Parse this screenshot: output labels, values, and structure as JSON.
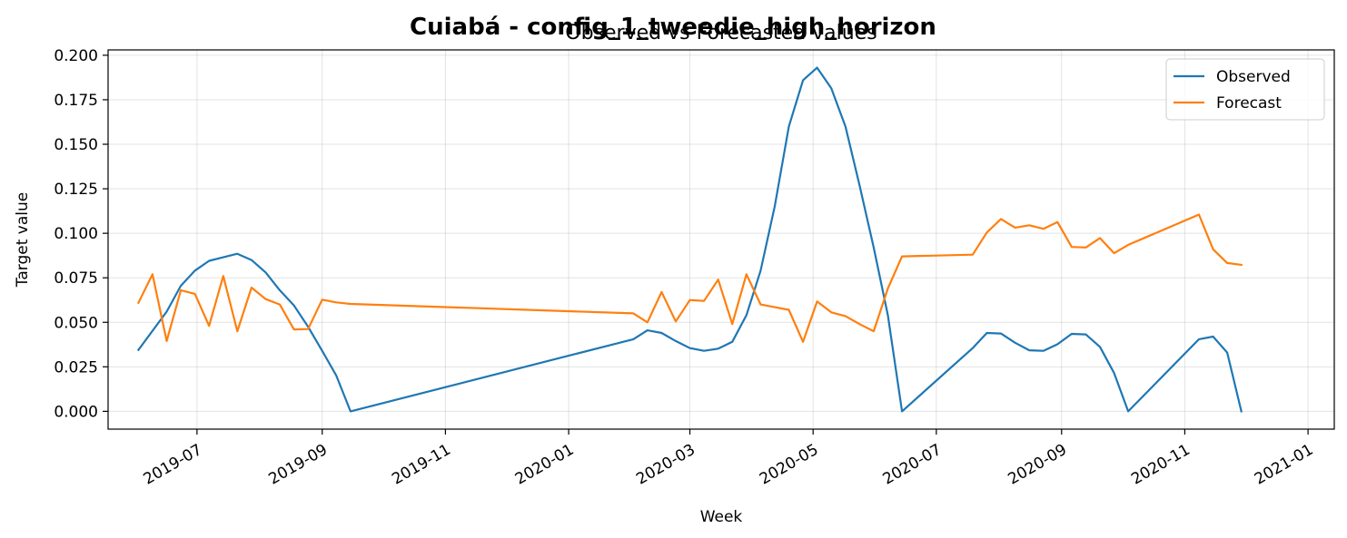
{
  "chart_data": {
    "type": "line",
    "title": "Cuiabá - config_1_tweedie_high_horizon",
    "subtitle": "Observed vs Forecasted values",
    "xlabel": "Week",
    "ylabel": "Target value",
    "xlim": [
      "2019-05-18",
      "2021-01-14"
    ],
    "ylim": [
      -0.01,
      0.203
    ],
    "grid": true,
    "legend": "top-right",
    "x_ticks": [
      "2019-07-01",
      "2019-09-01",
      "2019-11-01",
      "2020-01-01",
      "2020-03-01",
      "2020-05-01",
      "2020-07-01",
      "2020-09-01",
      "2020-11-01",
      "2021-01-01"
    ],
    "x_tick_labels": [
      "2019-07",
      "2019-09",
      "2019-11",
      "2020-01",
      "2020-03",
      "2020-05",
      "2020-07",
      "2020-09",
      "2020-11",
      "2021-01"
    ],
    "y_ticks": [
      0.0,
      0.025,
      0.05,
      0.075,
      0.1,
      0.125,
      0.15,
      0.175,
      0.2
    ],
    "y_tick_labels": [
      "0.000",
      "0.025",
      "0.050",
      "0.075",
      "0.100",
      "0.125",
      "0.150",
      "0.175",
      "0.200"
    ],
    "series": [
      {
        "name": "Observed",
        "color": "#1f77b4",
        "points": [
          [
            "2019-06-02",
            0.0345
          ],
          [
            "2019-06-16",
            0.056
          ],
          [
            "2019-06-23",
            0.0705
          ],
          [
            "2019-06-30",
            0.079
          ],
          [
            "2019-07-07",
            0.0845
          ],
          [
            "2019-07-14",
            0.0865
          ],
          [
            "2019-07-21",
            0.0885
          ],
          [
            "2019-07-28",
            0.085
          ],
          [
            "2019-08-04",
            0.078
          ],
          [
            "2019-08-11",
            0.068
          ],
          [
            "2019-08-18",
            0.0595
          ],
          [
            "2019-08-25",
            0.0475
          ],
          [
            "2019-09-01",
            0.034
          ],
          [
            "2019-09-08",
            0.02
          ],
          [
            "2019-09-15",
            0.0
          ],
          [
            "2020-02-02",
            0.0405
          ],
          [
            "2020-02-09",
            0.0455
          ],
          [
            "2020-02-16",
            0.044
          ],
          [
            "2020-02-23",
            0.0395
          ],
          [
            "2020-03-01",
            0.0355
          ],
          [
            "2020-03-08",
            0.034
          ],
          [
            "2020-03-15",
            0.0352
          ],
          [
            "2020-03-22",
            0.039
          ],
          [
            "2020-03-29",
            0.054
          ],
          [
            "2020-04-05",
            0.079
          ],
          [
            "2020-04-12",
            0.115
          ],
          [
            "2020-04-19",
            0.16
          ],
          [
            "2020-04-26",
            0.186
          ],
          [
            "2020-05-03",
            0.193
          ],
          [
            "2020-05-10",
            0.1815
          ],
          [
            "2020-05-17",
            0.16
          ],
          [
            "2020-05-24",
            0.127
          ],
          [
            "2020-05-31",
            0.092
          ],
          [
            "2020-06-07",
            0.054
          ],
          [
            "2020-06-14",
            0.0
          ],
          [
            "2020-07-19",
            0.0355
          ],
          [
            "2020-07-26",
            0.044
          ],
          [
            "2020-08-02",
            0.0437
          ],
          [
            "2020-08-09",
            0.0385
          ],
          [
            "2020-08-16",
            0.0343
          ],
          [
            "2020-08-23",
            0.034
          ],
          [
            "2020-08-30",
            0.0377
          ],
          [
            "2020-09-06",
            0.0435
          ],
          [
            "2020-09-13",
            0.0432
          ],
          [
            "2020-09-20",
            0.0362
          ],
          [
            "2020-09-27",
            0.0215
          ],
          [
            "2020-10-04",
            0.0
          ],
          [
            "2020-11-08",
            0.0405
          ],
          [
            "2020-11-15",
            0.042
          ],
          [
            "2020-11-22",
            0.033
          ],
          [
            "2020-11-29",
            0.0
          ]
        ]
      },
      {
        "name": "Forecast",
        "color": "#ff7f0e",
        "points": [
          [
            "2019-06-02",
            0.061
          ],
          [
            "2019-06-09",
            0.077
          ],
          [
            "2019-06-16",
            0.0395
          ],
          [
            "2019-06-23",
            0.068
          ],
          [
            "2019-06-30",
            0.066
          ],
          [
            "2019-07-07",
            0.048
          ],
          [
            "2019-07-14",
            0.076
          ],
          [
            "2019-07-21",
            0.045
          ],
          [
            "2019-07-28",
            0.0695
          ],
          [
            "2019-08-04",
            0.063
          ],
          [
            "2019-08-11",
            0.06
          ],
          [
            "2019-08-18",
            0.046
          ],
          [
            "2019-08-25",
            0.0462
          ],
          [
            "2019-09-01",
            0.0627
          ],
          [
            "2019-09-08",
            0.0612
          ],
          [
            "2019-09-15",
            0.0603
          ],
          [
            "2020-02-02",
            0.055
          ],
          [
            "2020-02-09",
            0.05
          ],
          [
            "2020-02-16",
            0.067
          ],
          [
            "2020-02-23",
            0.0505
          ],
          [
            "2020-03-01",
            0.0625
          ],
          [
            "2020-03-08",
            0.062
          ],
          [
            "2020-03-15",
            0.074
          ],
          [
            "2020-03-22",
            0.049
          ],
          [
            "2020-03-29",
            0.077
          ],
          [
            "2020-04-05",
            0.06
          ],
          [
            "2020-04-12",
            0.0585
          ],
          [
            "2020-04-19",
            0.057
          ],
          [
            "2020-04-26",
            0.039
          ],
          [
            "2020-05-03",
            0.0617
          ],
          [
            "2020-05-10",
            0.0556
          ],
          [
            "2020-05-17",
            0.0535
          ],
          [
            "2020-05-24",
            0.049
          ],
          [
            "2020-05-31",
            0.045
          ],
          [
            "2020-06-07",
            0.069
          ],
          [
            "2020-06-14",
            0.087
          ],
          [
            "2020-07-19",
            0.088
          ],
          [
            "2020-07-26",
            0.1005
          ],
          [
            "2020-08-02",
            0.108
          ],
          [
            "2020-08-09",
            0.1032
          ],
          [
            "2020-08-16",
            0.1045
          ],
          [
            "2020-08-23",
            0.1025
          ],
          [
            "2020-08-30",
            0.1063
          ],
          [
            "2020-09-06",
            0.0923
          ],
          [
            "2020-09-13",
            0.092
          ],
          [
            "2020-09-20",
            0.0973
          ],
          [
            "2020-09-27",
            0.0888
          ],
          [
            "2020-10-04",
            0.0935
          ],
          [
            "2020-11-08",
            0.1105
          ],
          [
            "2020-11-15",
            0.091
          ],
          [
            "2020-11-22",
            0.0833
          ],
          [
            "2020-11-29",
            0.0823
          ]
        ]
      }
    ]
  }
}
